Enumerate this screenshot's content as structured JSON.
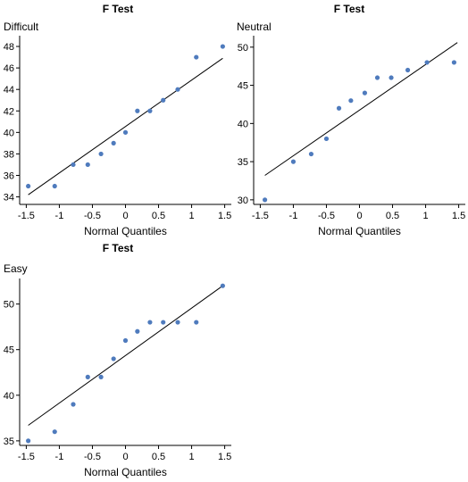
{
  "chart_data": [
    {
      "type": "scatter",
      "title": "F Test",
      "ylabel": "Difficult",
      "xlabel": "Normal Quantiles",
      "xlim": [
        -1.6,
        1.6
      ],
      "ylim": [
        33.3,
        49
      ],
      "xticks": [
        -1.5,
        -1,
        -0.5,
        0,
        0.5,
        1,
        1.5
      ],
      "xtick_labels": [
        "-1.5",
        "-1",
        "-0.5",
        "0",
        "0.5",
        "1",
        "1.5"
      ],
      "yticks": [
        34,
        36,
        38,
        40,
        42,
        44,
        46,
        48
      ],
      "ytick_labels": [
        "34",
        "36",
        "38",
        "40",
        "42",
        "44",
        "46",
        "48"
      ],
      "x": [
        -1.47,
        -1.07,
        -0.79,
        -0.57,
        -0.37,
        -0.18,
        0.0,
        0.18,
        0.37,
        0.57,
        0.79,
        1.07,
        1.47
      ],
      "y": [
        35,
        35,
        37,
        37,
        38,
        39,
        40,
        42,
        42,
        43,
        44,
        47,
        48
      ],
      "ref_line": {
        "x": [
          -1.47,
          1.47
        ],
        "y": [
          34.2,
          46.9
        ]
      },
      "grid": false
    },
    {
      "type": "scatter",
      "title": "F Test",
      "ylabel": "Neutral",
      "xlabel": "Normal Quantiles",
      "xlim": [
        -1.6,
        1.6
      ],
      "ylim": [
        29.4,
        51.5
      ],
      "xticks": [
        -1.5,
        -1,
        -0.5,
        0,
        0.5,
        1,
        1.5
      ],
      "xtick_labels": [
        "-1.5",
        "-1",
        "-0.5",
        "0",
        "0.5",
        "1",
        "1.5"
      ],
      "yticks": [
        30,
        35,
        40,
        45,
        50
      ],
      "ytick_labels": [
        "30",
        "35",
        "40",
        "45",
        "50"
      ],
      "x": [
        -1.43,
        -1.0,
        -0.73,
        -0.5,
        -0.31,
        -0.13,
        0.08,
        0.27,
        0.48,
        0.73,
        1.02,
        1.43
      ],
      "y": [
        30,
        35,
        36,
        38,
        42,
        43,
        44,
        46,
        46,
        47,
        48,
        48
      ],
      "ref_line": {
        "x": [
          -1.43,
          1.48
        ],
        "y": [
          33.2,
          50.6
        ]
      },
      "grid": false
    },
    {
      "type": "scatter",
      "title": "F Test",
      "ylabel": "Easy",
      "xlabel": "Normal Quantiles",
      "xlim": [
        -1.6,
        1.6
      ],
      "ylim": [
        34.5,
        52.8
      ],
      "xticks": [
        -1.5,
        -1,
        -0.5,
        0,
        0.5,
        1,
        1.5
      ],
      "xtick_labels": [
        "-1.5",
        "-1",
        "-0.5",
        "0",
        "0.5",
        "1",
        "1.5"
      ],
      "yticks": [
        35,
        40,
        45,
        50
      ],
      "ytick_labels": [
        "35",
        "40",
        "45",
        "50"
      ],
      "x": [
        -1.47,
        -1.07,
        -0.79,
        -0.57,
        -0.37,
        -0.18,
        0.0,
        0.18,
        0.37,
        0.57,
        0.79,
        1.07,
        1.47
      ],
      "y": [
        35,
        36,
        39,
        42,
        42,
        44,
        46,
        47,
        48,
        48,
        48,
        48,
        52
      ],
      "ref_line": {
        "x": [
          -1.47,
          1.47
        ],
        "y": [
          36.7,
          52.0
        ]
      },
      "grid": false
    }
  ]
}
